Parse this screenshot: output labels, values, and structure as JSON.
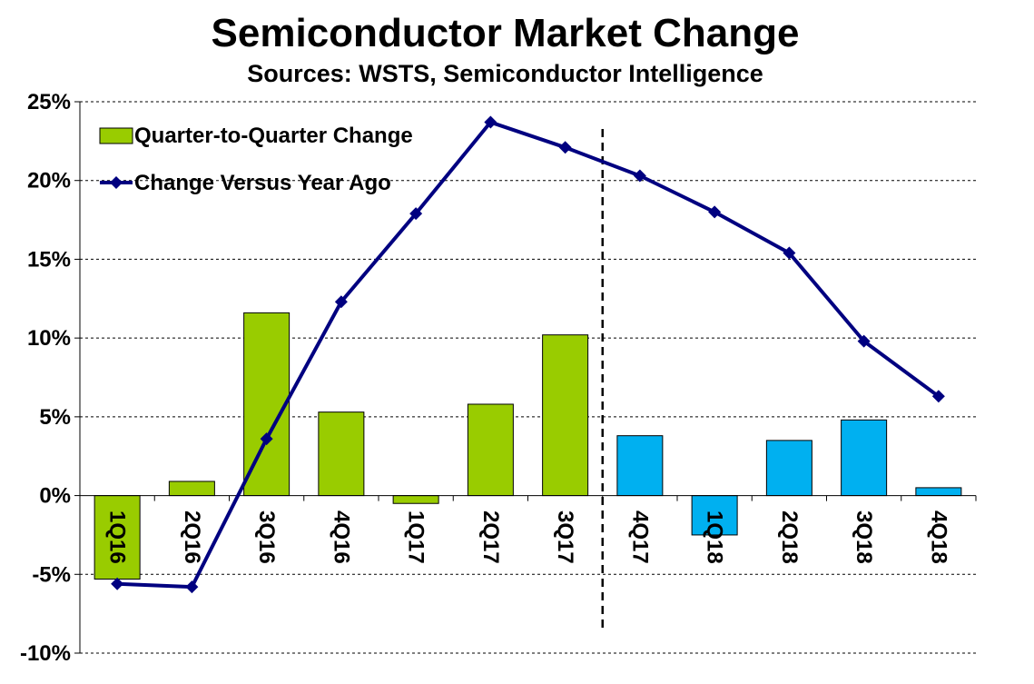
{
  "chart_data": {
    "type": "bar",
    "title": "Semiconductor Market Change",
    "subtitle": "Sources: WSTS, Semiconductor Intelligence",
    "categories": [
      "1Q16",
      "2Q16",
      "3Q16",
      "4Q16",
      "1Q17",
      "2Q17",
      "3Q17",
      "4Q17",
      "1Q18",
      "2Q18",
      "3Q18",
      "4Q18"
    ],
    "series": [
      {
        "name": "Quarter-to-Quarter Change",
        "kind": "bar",
        "values": [
          -5.3,
          0.9,
          11.6,
          5.3,
          -0.5,
          5.8,
          10.2,
          3.8,
          -2.5,
          3.5,
          4.8,
          0.5
        ],
        "colors": [
          "#99cc00",
          "#99cc00",
          "#99cc00",
          "#99cc00",
          "#99cc00",
          "#99cc00",
          "#99cc00",
          "#00b0f0",
          "#00b0f0",
          "#00b0f0",
          "#00b0f0",
          "#00b0f0"
        ]
      },
      {
        "name": "Change Versus Year Ago",
        "kind": "line",
        "color": "#000080",
        "values": [
          -5.6,
          -5.8,
          3.6,
          12.3,
          17.9,
          23.7,
          22.1,
          20.3,
          18.0,
          15.4,
          9.8,
          6.3
        ]
      }
    ],
    "y_ticks": [
      "25%",
      "20%",
      "15%",
      "10%",
      "5%",
      "0%",
      "-5%",
      "-10%"
    ],
    "ylim": [
      -10,
      25
    ],
    "grid": true,
    "legend_position": "top-left",
    "divider_after_category": "3Q17"
  }
}
